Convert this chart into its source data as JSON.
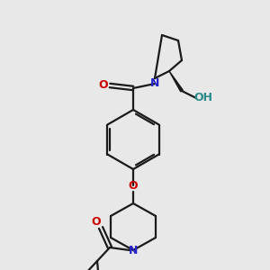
{
  "bg_color": "#e8e8e8",
  "bond_color": "#1a1a1a",
  "N_color": "#2222cc",
  "O_color": "#cc0000",
  "OH_color": "#2a8a8a",
  "lw": 1.6,
  "figsize": [
    3.0,
    3.0
  ],
  "dpi": 100,
  "xlim": [
    0,
    300
  ],
  "ylim": [
    0,
    300
  ]
}
